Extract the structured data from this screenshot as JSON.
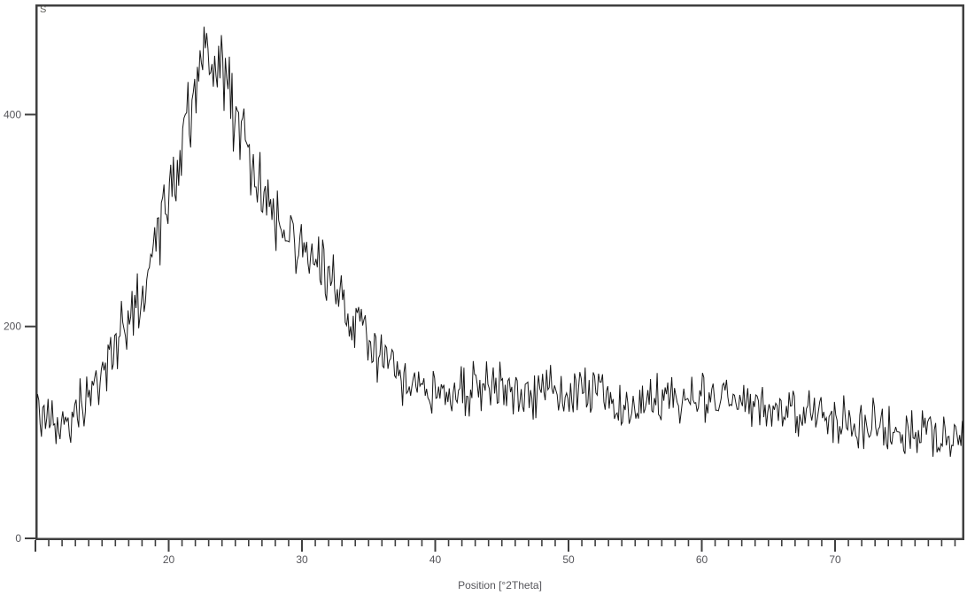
{
  "chart_data": {
    "type": "line",
    "title": "",
    "series_label": "S",
    "xlabel": "Position [°2Theta]",
    "ylabel": "",
    "xlim": [
      10,
      79.7
    ],
    "ylim": [
      0,
      505
    ],
    "x_ticks": [
      20,
      30,
      40,
      50,
      60,
      70
    ],
    "x_minor_tick_step": 1,
    "y_ticks": [
      0,
      200,
      400
    ],
    "grid": false,
    "legend": "none",
    "line_color": "#161616",
    "axis_color": "#3f3f3f",
    "tick_label_color": "#55555a",
    "background_color": "#ffffff",
    "noise": {
      "base_amplitude": 13,
      "proportional_amplitude": 0.05,
      "sample_step": 0.1
    },
    "envelope_points": [
      [
        10,
        120
      ],
      [
        11,
        112
      ],
      [
        12,
        104
      ],
      [
        13,
        118
      ],
      [
        14,
        140
      ],
      [
        15,
        152
      ],
      [
        16,
        185
      ],
      [
        17,
        205
      ],
      [
        18,
        235
      ],
      [
        19,
        280
      ],
      [
        20,
        320
      ],
      [
        21,
        385
      ],
      [
        22,
        432
      ],
      [
        22.8,
        462
      ],
      [
        23.5,
        455
      ],
      [
        24,
        435
      ],
      [
        25,
        400
      ],
      [
        26,
        362
      ],
      [
        27,
        330
      ],
      [
        28,
        302
      ],
      [
        29,
        282
      ],
      [
        30,
        270
      ],
      [
        31,
        258
      ],
      [
        32,
        243
      ],
      [
        33,
        224
      ],
      [
        34,
        206
      ],
      [
        35,
        185
      ],
      [
        36,
        166
      ],
      [
        37,
        152
      ],
      [
        38,
        146
      ],
      [
        39,
        141
      ],
      [
        40,
        139
      ],
      [
        41,
        133
      ],
      [
        42,
        141
      ],
      [
        43,
        146
      ],
      [
        44,
        142
      ],
      [
        45,
        140
      ],
      [
        46,
        142
      ],
      [
        47,
        140
      ],
      [
        48,
        138
      ],
      [
        50,
        136
      ],
      [
        52,
        133
      ],
      [
        54,
        132
      ],
      [
        56,
        131
      ],
      [
        58,
        134
      ],
      [
        60,
        135
      ],
      [
        62,
        132
      ],
      [
        64,
        127
      ],
      [
        66,
        122
      ],
      [
        68,
        118
      ],
      [
        70,
        113
      ],
      [
        72,
        108
      ],
      [
        74,
        104
      ],
      [
        76,
        100
      ],
      [
        78,
        97
      ],
      [
        79.7,
        95
      ]
    ]
  }
}
